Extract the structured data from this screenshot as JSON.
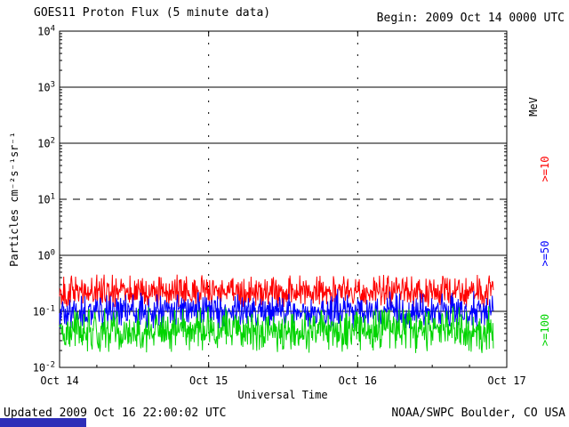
{
  "header": {
    "title": "GOES11 Proton Flux (5 minute data)",
    "begin_label": "Begin: 2009 Oct 14 0000 UTC"
  },
  "footer": {
    "updated": "Updated 2009 Oct 16 22:00:02 UTC",
    "credit": "NOAA/SWPC Boulder, CO USA"
  },
  "misc": {
    "bottom_bar_color": "#2e2eb8",
    "axis_color": "#000000",
    "background_color": "#ffffff"
  },
  "chart_data": {
    "type": "line",
    "title": "GOES11 Proton Flux (5 minute data)",
    "xlabel": "Universal Time",
    "ylabel": "Particles cm⁻²s⁻¹sr⁻¹",
    "right_axis_label": "MeV",
    "x_ticks": [
      "Oct 14",
      "Oct 15",
      "Oct 16",
      "Oct 17"
    ],
    "x_range_days": 3,
    "y_scale": "log10",
    "ylim_log10": [
      -2,
      4
    ],
    "y_tick_exponents": [
      4,
      3,
      2,
      1,
      0,
      -1,
      -2
    ],
    "gridlines": {
      "solid_h_log10": [
        3,
        2,
        0,
        -1
      ],
      "dashed_h_log10": [
        1
      ],
      "dotted_v_x_ticks": [
        "Oct 15",
        "Oct 16"
      ]
    },
    "series": [
      {
        "label": ">=10",
        "name": ">=10 MeV",
        "color": "#ff0000",
        "baseline": 0.23,
        "approx_min": 0.12,
        "approx_max": 0.5,
        "noise_log10": 0.2,
        "points_per_day": 288,
        "end_fraction": 0.97,
        "seed": 101
      },
      {
        "label": ">=50",
        "name": ">=50 MeV",
        "color": "#0000ff",
        "baseline": 0.1,
        "approx_min": 0.05,
        "approx_max": 0.25,
        "noise_log10": 0.22,
        "points_per_day": 288,
        "end_fraction": 0.97,
        "seed": 202
      },
      {
        "label": ">=100",
        "name": ">=100 MeV",
        "color": "#00d400",
        "baseline": 0.046,
        "approx_min": 0.018,
        "approx_max": 0.13,
        "noise_log10": 0.26,
        "points_per_day": 288,
        "end_fraction": 0.97,
        "seed": 303
      }
    ],
    "legend_position": "right",
    "summary": "Quiet background proton flux, no event; all three channels flat noisy bands below 1 pfu"
  }
}
